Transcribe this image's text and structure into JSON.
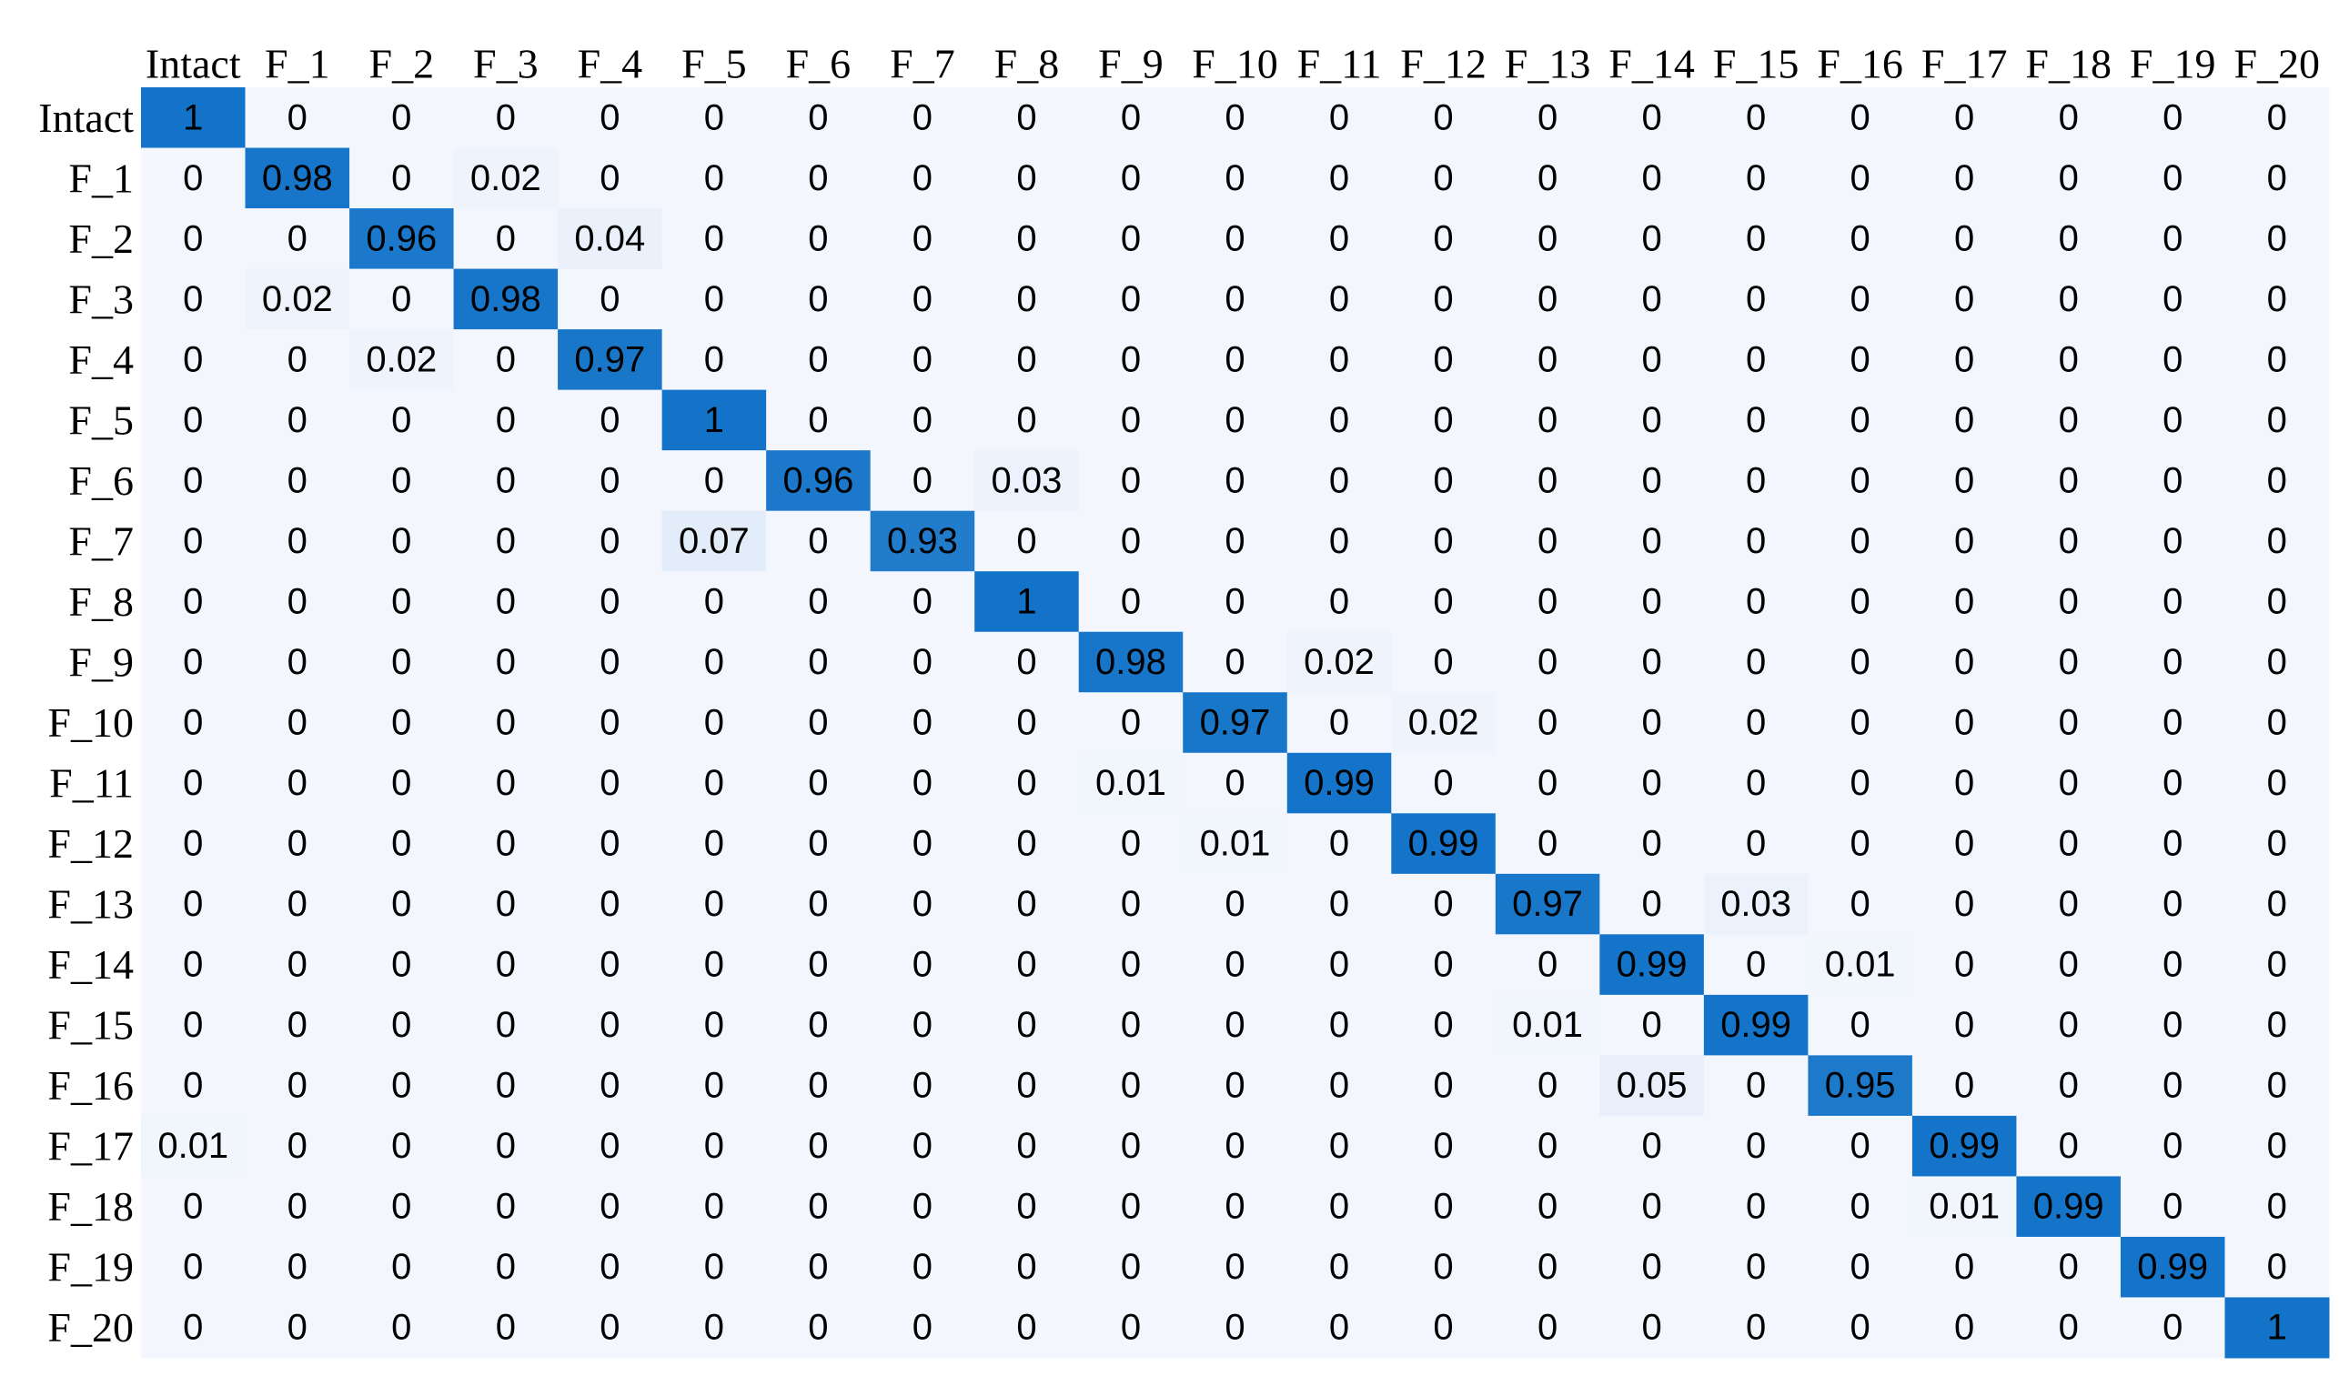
{
  "colors": {
    "background_cell": "#f3f6fd",
    "max_cell": "#1273c8",
    "text": "#000000"
  },
  "chart_data": {
    "type": "heatmap",
    "title": "",
    "xlabel": "",
    "ylabel": "",
    "x_categories": [
      "Intact",
      "F_1",
      "F_2",
      "F_3",
      "F_4",
      "F_5",
      "F_6",
      "F_7",
      "F_8",
      "F_9",
      "F_10",
      "F_11",
      "F_12",
      "F_13",
      "F_14",
      "F_15",
      "F_16",
      "F_17",
      "F_18",
      "F_19",
      "F_20"
    ],
    "y_categories": [
      "Intact",
      "F_1",
      "F_2",
      "F_3",
      "F_4",
      "F_5",
      "F_6",
      "F_7",
      "F_8",
      "F_9",
      "F_10",
      "F_11",
      "F_12",
      "F_13",
      "F_14",
      "F_15",
      "F_16",
      "F_17",
      "F_18",
      "F_19",
      "F_20"
    ],
    "values": [
      [
        1,
        0,
        0,
        0,
        0,
        0,
        0,
        0,
        0,
        0,
        0,
        0,
        0,
        0,
        0,
        0,
        0,
        0,
        0,
        0,
        0
      ],
      [
        0,
        0.98,
        0,
        0.02,
        0,
        0,
        0,
        0,
        0,
        0,
        0,
        0,
        0,
        0,
        0,
        0,
        0,
        0,
        0,
        0,
        0
      ],
      [
        0,
        0,
        0.96,
        0,
        0.04,
        0,
        0,
        0,
        0,
        0,
        0,
        0,
        0,
        0,
        0,
        0,
        0,
        0,
        0,
        0,
        0
      ],
      [
        0,
        0.02,
        0,
        0.98,
        0,
        0,
        0,
        0,
        0,
        0,
        0,
        0,
        0,
        0,
        0,
        0,
        0,
        0,
        0,
        0,
        0
      ],
      [
        0,
        0,
        0.02,
        0,
        0.97,
        0,
        0,
        0,
        0,
        0,
        0,
        0,
        0,
        0,
        0,
        0,
        0,
        0,
        0,
        0,
        0
      ],
      [
        0,
        0,
        0,
        0,
        0,
        1,
        0,
        0,
        0,
        0,
        0,
        0,
        0,
        0,
        0,
        0,
        0,
        0,
        0,
        0,
        0
      ],
      [
        0,
        0,
        0,
        0,
        0,
        0,
        0.96,
        0,
        0.03,
        0,
        0,
        0,
        0,
        0,
        0,
        0,
        0,
        0,
        0,
        0,
        0
      ],
      [
        0,
        0,
        0,
        0,
        0,
        0.07,
        0,
        0.93,
        0,
        0,
        0,
        0,
        0,
        0,
        0,
        0,
        0,
        0,
        0,
        0,
        0
      ],
      [
        0,
        0,
        0,
        0,
        0,
        0,
        0,
        0,
        1,
        0,
        0,
        0,
        0,
        0,
        0,
        0,
        0,
        0,
        0,
        0,
        0
      ],
      [
        0,
        0,
        0,
        0,
        0,
        0,
        0,
        0,
        0,
        0.98,
        0,
        0.02,
        0,
        0,
        0,
        0,
        0,
        0,
        0,
        0,
        0
      ],
      [
        0,
        0,
        0,
        0,
        0,
        0,
        0,
        0,
        0,
        0,
        0.97,
        0,
        0.02,
        0,
        0,
        0,
        0,
        0,
        0,
        0,
        0
      ],
      [
        0,
        0,
        0,
        0,
        0,
        0,
        0,
        0,
        0,
        0.01,
        0,
        0.99,
        0,
        0,
        0,
        0,
        0,
        0,
        0,
        0,
        0
      ],
      [
        0,
        0,
        0,
        0,
        0,
        0,
        0,
        0,
        0,
        0,
        0.01,
        0,
        0.99,
        0,
        0,
        0,
        0,
        0,
        0,
        0,
        0
      ],
      [
        0,
        0,
        0,
        0,
        0,
        0,
        0,
        0,
        0,
        0,
        0,
        0,
        0,
        0.97,
        0,
        0.03,
        0,
        0,
        0,
        0,
        0
      ],
      [
        0,
        0,
        0,
        0,
        0,
        0,
        0,
        0,
        0,
        0,
        0,
        0,
        0,
        0,
        0.99,
        0,
        0.01,
        0,
        0,
        0,
        0
      ],
      [
        0,
        0,
        0,
        0,
        0,
        0,
        0,
        0,
        0,
        0,
        0,
        0,
        0,
        0.01,
        0,
        0.99,
        0,
        0,
        0,
        0,
        0
      ],
      [
        0,
        0,
        0,
        0,
        0,
        0,
        0,
        0,
        0,
        0,
        0,
        0,
        0,
        0,
        0.05,
        0,
        0.95,
        0,
        0,
        0,
        0
      ],
      [
        0.01,
        0,
        0,
        0,
        0,
        0,
        0,
        0,
        0,
        0,
        0,
        0,
        0,
        0,
        0,
        0,
        0,
        0.99,
        0,
        0,
        0
      ],
      [
        0,
        0,
        0,
        0,
        0,
        0,
        0,
        0,
        0,
        0,
        0,
        0,
        0,
        0,
        0,
        0,
        0,
        0.01,
        0.99,
        0,
        0
      ],
      [
        0,
        0,
        0,
        0,
        0,
        0,
        0,
        0,
        0,
        0,
        0,
        0,
        0,
        0,
        0,
        0,
        0,
        0,
        0,
        0.99,
        0
      ],
      [
        0,
        0,
        0,
        0,
        0,
        0,
        0,
        0,
        0,
        0,
        0,
        0,
        0,
        0,
        0,
        0,
        0,
        0,
        0,
        0,
        1
      ]
    ],
    "value_range": [
      0,
      1
    ],
    "grid": false,
    "legend": "none"
  }
}
